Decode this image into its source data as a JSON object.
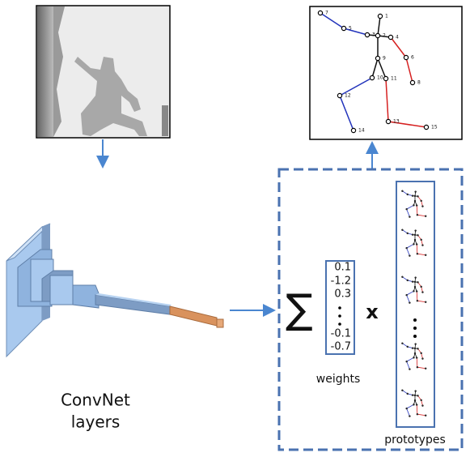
{
  "convnet_label": [
    "ConvNet",
    "layers"
  ],
  "sum": "∑",
  "operator": "x",
  "weights": {
    "label": "weights",
    "values": [
      0.1,
      -1.2,
      0.3,
      -0.1,
      -0.7
    ]
  },
  "prototypes_label": "prototypes",
  "skeleton": {
    "joints": [
      1,
      2,
      3,
      4,
      5,
      6,
      7,
      8,
      9,
      10,
      11,
      12,
      13,
      14,
      15
    ]
  }
}
